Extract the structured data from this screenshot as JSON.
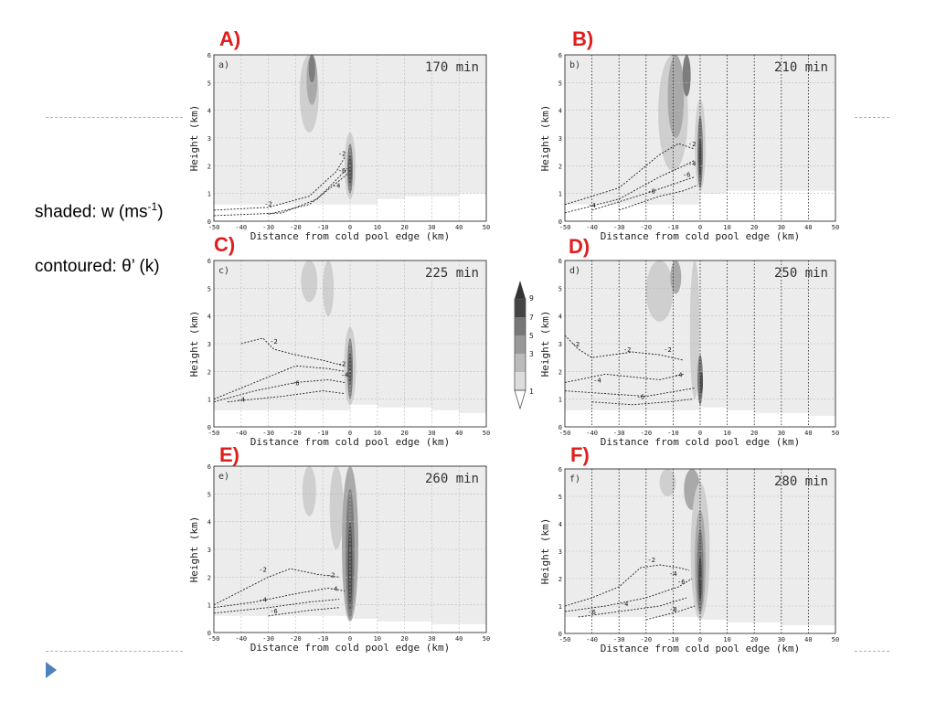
{
  "side_labels": {
    "shaded_prefix": "shaded: w (ms",
    "shaded_sup": "-1",
    "shaded_suffix": ")",
    "contoured": "contoured: θ’ (k)"
  },
  "colorbar": {
    "levels": [
      "9",
      "7",
      "5",
      "3",
      "1"
    ]
  },
  "panels": [
    {
      "letter": "A)",
      "sub": "a)",
      "time": "170 min"
    },
    {
      "letter": "B)",
      "sub": "b)",
      "time": "210 min"
    },
    {
      "letter": "C)",
      "sub": "c)",
      "time": "225 min"
    },
    {
      "letter": "D)",
      "sub": "d)",
      "time": "250 min"
    },
    {
      "letter": "E)",
      "sub": "e)",
      "time": "260 min"
    },
    {
      "letter": "F)",
      "sub": "f)",
      "time": "280 min"
    }
  ],
  "chart_data": [
    {
      "type": "heatmap",
      "xlabel": "Distance from cold pool edge (km)",
      "ylabel": "Height (km)",
      "xlim": [
        -50,
        50
      ],
      "ylim": [
        0,
        6
      ],
      "grid": true,
      "xticks": [
        "-50",
        "-40",
        "-30",
        "-20",
        "-10",
        "0",
        "10",
        "20",
        "30",
        "40",
        "50"
      ],
      "yticks": [
        "0",
        "1",
        "2",
        "3",
        "4",
        "5",
        "6"
      ],
      "contour_labels": [
        "-2",
        "-2",
        "-4",
        "-6"
      ]
    },
    {
      "type": "heatmap",
      "xlabel": "Distance from cold pool edge (km)",
      "ylabel": "Height (km)",
      "xlim": [
        -50,
        50
      ],
      "ylim": [
        0,
        6
      ],
      "grid": true,
      "xticks": [
        "-50",
        "-40",
        "-30",
        "-20",
        "-10",
        "0",
        "10",
        "20",
        "30",
        "40",
        "50"
      ],
      "yticks": [
        "0",
        "1",
        "2",
        "3",
        "4",
        "5",
        "6"
      ],
      "contour_labels": [
        "-2",
        "-4",
        "-6",
        "-8",
        "-4"
      ]
    },
    {
      "type": "heatmap",
      "xlabel": "Distance from cold pool edge (km)",
      "ylabel": "Height (km)",
      "xlim": [
        -50,
        50
      ],
      "ylim": [
        0,
        6
      ],
      "grid": true,
      "xticks": [
        "-50",
        "-40",
        "-30",
        "-20",
        "-10",
        "0",
        "10",
        "20",
        "30",
        "40",
        "50"
      ],
      "yticks": [
        "0",
        "1",
        "2",
        "3",
        "4",
        "5",
        "6"
      ],
      "contour_labels": [
        "-2",
        "-2",
        "-4",
        "-6",
        "-4"
      ]
    },
    {
      "type": "heatmap",
      "xlabel": "Distance from cold pool edge (km)",
      "ylabel": "Height (km)",
      "xlim": [
        -50,
        50
      ],
      "ylim": [
        0,
        6
      ],
      "grid": true,
      "xticks": [
        "-50",
        "-40",
        "-30",
        "-20",
        "-10",
        "0",
        "10",
        "20",
        "30",
        "40",
        "50"
      ],
      "yticks": [
        "0",
        "1",
        "2",
        "3",
        "4",
        "5",
        "6"
      ],
      "contour_labels": [
        "-2",
        "-2",
        "-2",
        "-4",
        "-4",
        "-6"
      ]
    },
    {
      "type": "heatmap",
      "xlabel": "Distance from cold pool edge (km)",
      "ylabel": "Height (km)",
      "xlim": [
        -50,
        50
      ],
      "ylim": [
        0,
        6
      ],
      "grid": true,
      "xticks": [
        "-50",
        "-40",
        "-30",
        "-20",
        "-10",
        "0",
        "10",
        "20",
        "30",
        "40",
        "50"
      ],
      "yticks": [
        "0",
        "1",
        "2",
        "3",
        "4",
        "5",
        "6"
      ],
      "contour_labels": [
        "-2",
        "-2",
        "-4",
        "-4",
        "-6"
      ]
    },
    {
      "type": "heatmap",
      "xlabel": "Distance from cold pool edge (km)",
      "ylabel": "Height (km)",
      "xlim": [
        -50,
        50
      ],
      "ylim": [
        0,
        6
      ],
      "grid": true,
      "xticks": [
        "-50",
        "-40",
        "-30",
        "-20",
        "-10",
        "0",
        "10",
        "20",
        "30",
        "40",
        "50"
      ],
      "yticks": [
        "0",
        "1",
        "2",
        "3",
        "4",
        "5",
        "6"
      ],
      "contour_labels": [
        "-2",
        "-4",
        "-6",
        "-4",
        "-6",
        "-8"
      ]
    }
  ]
}
